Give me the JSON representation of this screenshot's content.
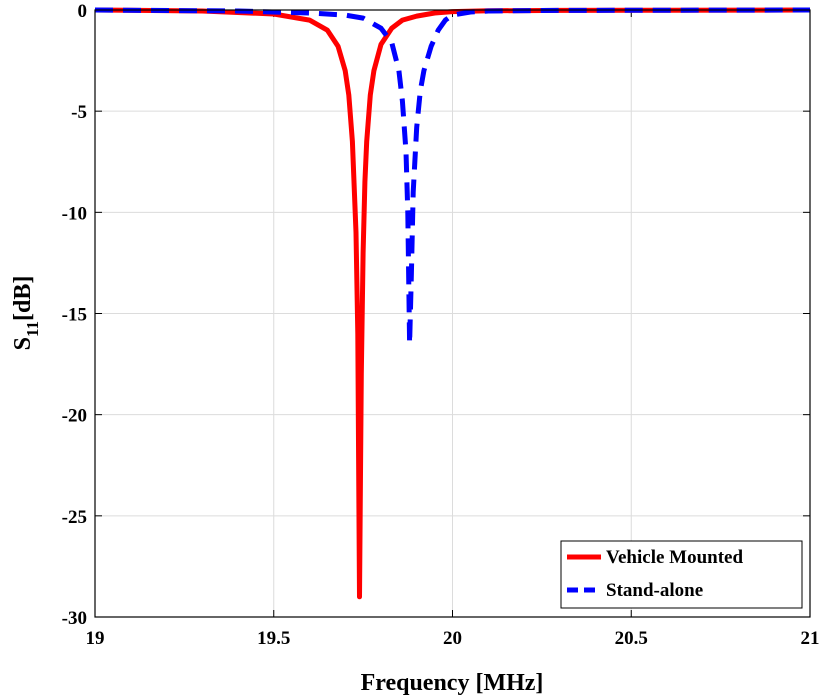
{
  "chart_data": {
    "type": "line",
    "title": "",
    "xlabel": "Frequency [MHz]",
    "ylabel_main": "S",
    "ylabel_sub": "11",
    "ylabel_unit": "[dB]",
    "xlim": [
      19,
      21
    ],
    "ylim": [
      -30,
      0
    ],
    "xticks": [
      19,
      19.5,
      20,
      20.5,
      21
    ],
    "xtick_labels": [
      "19",
      "19.5",
      "20",
      "20.5",
      "21"
    ],
    "yticks": [
      0,
      -5,
      -10,
      -15,
      -20,
      -25,
      -30
    ],
    "ytick_labels": [
      "0",
      "-5",
      "-10",
      "-15",
      "-20",
      "-25",
      "-30"
    ],
    "grid": true,
    "legend_position": "bottom-right",
    "series": [
      {
        "name": "Vehicle Mounted",
        "color": "#ff0000",
        "dash": "solid",
        "x": [
          19.0,
          19.3,
          19.5,
          19.6,
          19.65,
          19.68,
          19.7,
          19.71,
          19.72,
          19.73,
          19.735,
          19.74,
          19.745,
          19.75,
          19.755,
          19.76,
          19.77,
          19.78,
          19.8,
          19.83,
          19.86,
          19.9,
          19.95,
          20.0,
          20.1,
          20.3,
          20.6,
          21.0
        ],
        "y": [
          0,
          -0.05,
          -0.2,
          -0.5,
          -1.0,
          -1.8,
          -3.0,
          -4.2,
          -6.5,
          -11.0,
          -16.0,
          -29.0,
          -18.0,
          -12.0,
          -8.5,
          -6.5,
          -4.2,
          -3.0,
          -1.7,
          -0.9,
          -0.5,
          -0.3,
          -0.15,
          -0.08,
          -0.04,
          -0.02,
          -0.01,
          0
        ]
      },
      {
        "name": "Stand-alone",
        "color": "#0000ff",
        "dash": "dashed",
        "x": [
          19.0,
          19.4,
          19.6,
          19.7,
          19.75,
          19.8,
          19.83,
          19.85,
          19.86,
          19.87,
          19.875,
          19.88,
          19.885,
          19.89,
          19.9,
          19.91,
          19.92,
          19.94,
          19.96,
          19.98,
          20.0,
          20.05,
          20.1,
          20.3,
          21.0
        ],
        "y": [
          0,
          -0.05,
          -0.15,
          -0.25,
          -0.4,
          -0.9,
          -1.6,
          -3.0,
          -4.5,
          -7.0,
          -10.0,
          -16.5,
          -13.0,
          -9.0,
          -5.8,
          -4.0,
          -3.0,
          -1.8,
          -1.0,
          -0.5,
          -0.25,
          -0.1,
          -0.05,
          -0.02,
          0
        ]
      }
    ]
  }
}
